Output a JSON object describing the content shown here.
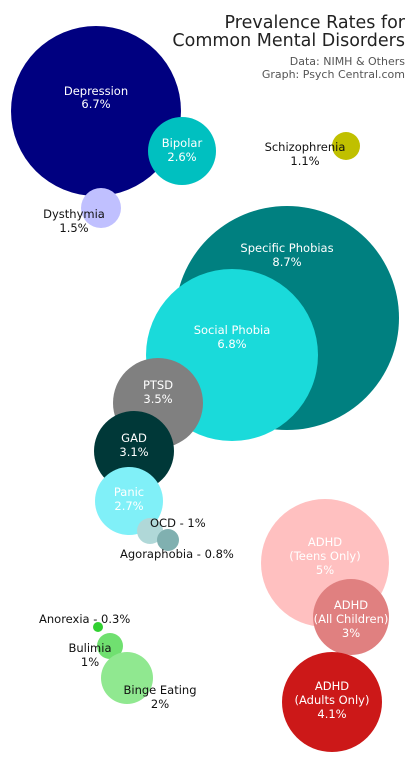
{
  "chart_data": {
    "type": "bubble",
    "title": [
      "Prevalence Rates for",
      "Common Mental Disorders"
    ],
    "source": "Data: NIMH & Others",
    "graph_credit": "Graph: Psych Central.com",
    "units": "%",
    "items": [
      {
        "name": "Depression",
        "value_label": "6.7%",
        "value": 6.7,
        "color": "#000080"
      },
      {
        "name": "Bipolar",
        "value_label": "2.6%",
        "value": 2.6,
        "color": "#00c0c0"
      },
      {
        "name": "Dysthymia",
        "value_label": "1.5%",
        "value": 1.5,
        "color": "#c0c0ff"
      },
      {
        "name": "Schizophrenia",
        "value_label": "1.1%",
        "value": 1.1,
        "color": "#c0c000"
      },
      {
        "name": "Specific Phobias",
        "value_label": "8.7%",
        "value": 8.7,
        "color": "#008080"
      },
      {
        "name": "Social Phobia",
        "value_label": "6.8%",
        "value": 6.8,
        "color": "#1adada"
      },
      {
        "name": "PTSD",
        "value_label": "3.5%",
        "value": 3.5,
        "color": "#808080"
      },
      {
        "name": "GAD",
        "value_label": "3.1%",
        "value": 3.1,
        "color": "#003838"
      },
      {
        "name": "Panic",
        "value_label": "2.7%",
        "value": 2.7,
        "color": "#80f0f8"
      },
      {
        "name": "OCD",
        "value_label": "1%",
        "value": 1.0,
        "color": "#b0d8d8"
      },
      {
        "name": "Agoraphobia",
        "value_label": "0.8%",
        "value": 0.8,
        "color": "#80b0b0"
      },
      {
        "name": "ADHD (Teens Only)",
        "value_label": "5%",
        "value": 5.0,
        "color": "#ffc0c0"
      },
      {
        "name": "ADHD (All Children)",
        "value_label": "3%",
        "value": 3.0,
        "color": "#e08080"
      },
      {
        "name": "ADHD (Adults Only)",
        "value_label": "4.1%",
        "value": 4.1,
        "color": "#cc1818"
      },
      {
        "name": "Anorexia",
        "value_label": "0.3%",
        "value": 0.3,
        "color": "#30d030"
      },
      {
        "name": "Bulimia",
        "value_label": "1%",
        "value": 1.0,
        "color": "#70e070"
      },
      {
        "name": "Binge Eating",
        "value_label": "2%",
        "value": 2.0,
        "color": "#90e890"
      }
    ]
  }
}
